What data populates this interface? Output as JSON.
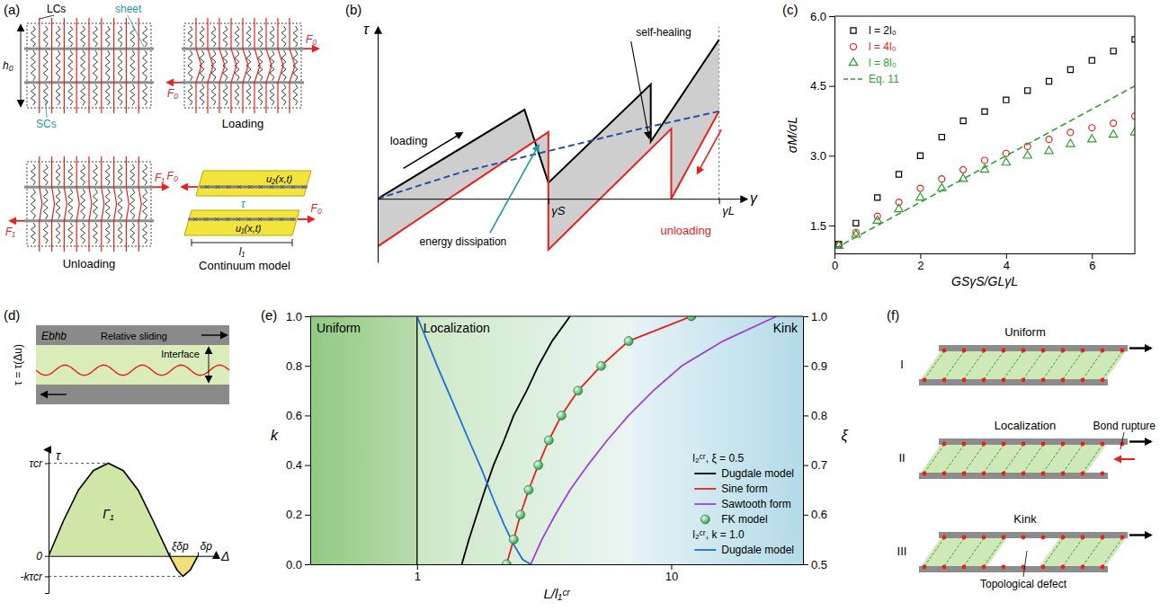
{
  "chart_data": [
    {
      "type": "line",
      "title": "(b)",
      "x_label": "γ",
      "y_label": "τ",
      "xlim": [
        0,
        1.08
      ],
      "ylim": [
        -0.4,
        1.08
      ],
      "xticks": [
        {
          "value": 0.5,
          "label": "γS"
        },
        {
          "value": 1,
          "label": "γL"
        }
      ],
      "yticks": [],
      "tick_labels": "x",
      "series": [
        {
          "color": "#000000",
          "x": [
            0,
            0.43,
            0.5,
            0.8,
            0.8,
            1
          ],
          "values": [
            0,
            0.56,
            0.1,
            0.72,
            0.36,
            1
          ]
        },
        {
          "color": "#e8201e",
          "x": [
            0,
            0.5,
            0.5,
            0.86,
            0.86,
            1
          ],
          "values": [
            -0.3,
            0.42,
            -0.32,
            0.44,
            0,
            0.55
          ]
        },
        {
          "color": "#2b4ea0",
          "line_style": "dashed",
          "x": [
            0,
            0.25,
            0.5,
            0.75,
            1
          ],
          "values": [
            0,
            0.17,
            0.3,
            0.43,
            0.55
          ]
        }
      ],
      "annotations": [
        "loading",
        "unloading",
        "self-healing",
        "energy dissipation"
      ]
    },
    {
      "type": "scatter",
      "title": "(c)",
      "x_label": "GSγS/GLγL",
      "y_label": "σM/σL",
      "xlim": [
        0,
        7
      ],
      "ylim": [
        0.9,
        6.0
      ],
      "xticks": [
        0,
        2,
        4,
        6
      ],
      "yticks": [
        1.5,
        {
          "value": 3,
          "label": "3.0"
        },
        4.5,
        {
          "value": 6,
          "label": "6.0"
        }
      ],
      "legend": "upper left",
      "x": [
        0.1,
        0.5,
        1,
        1.5,
        2,
        2.5,
        3,
        3.5,
        4,
        4.5,
        5,
        5.5,
        6,
        6.5,
        7
      ],
      "series": [
        {
          "name": "l = 2l₀",
          "color": "#000000",
          "marker": "square",
          "values": [
            1.1,
            1.55,
            2.1,
            2.6,
            3.0,
            3.4,
            3.75,
            3.95,
            4.2,
            4.4,
            4.6,
            4.85,
            5.05,
            5.25,
            5.5
          ]
        },
        {
          "name": "l = 4l₀",
          "color": "#e8201e",
          "marker": "circle",
          "values": [
            1.08,
            1.35,
            1.7,
            2.0,
            2.3,
            2.5,
            2.7,
            2.9,
            3.05,
            3.2,
            3.35,
            3.5,
            3.6,
            3.7,
            3.85
          ]
        },
        {
          "name": "l = 8l₀",
          "color": "#2ca02c",
          "marker": "triangle",
          "values": [
            1.06,
            1.3,
            1.6,
            1.85,
            2.1,
            2.3,
            2.5,
            2.7,
            2.85,
            3.0,
            3.1,
            3.25,
            3.35,
            3.45,
            3.5
          ]
        },
        {
          "name": "Eq. 11",
          "type": "line",
          "line_style": "dashed",
          "color": "#2ca02c",
          "x": [
            0,
            7
          ],
          "values": [
            1.0,
            4.5
          ]
        }
      ]
    },
    {
      "type": "line",
      "x_label": "Δ",
      "y_label": "τ",
      "color": "#000000",
      "xlim": [
        0,
        1.12
      ],
      "ylim": [
        -0.4,
        1.15
      ],
      "xticks": [
        {
          "value": 0.81,
          "label": "ξδp"
        },
        {
          "value": 1,
          "label": "δp"
        }
      ],
      "yticks": [
        {
          "value": -0.22,
          "label": "-kτcr"
        },
        0,
        {
          "value": 1,
          "label": "τcr"
        }
      ],
      "x": [
        0,
        0.1,
        0.2,
        0.3,
        0.4,
        0.5,
        0.6,
        0.7,
        0.81,
        0.86,
        0.9,
        0.95,
        1.0
      ],
      "values": [
        0,
        0.38,
        0.71,
        0.92,
        1.0,
        0.92,
        0.71,
        0.38,
        0,
        -0.15,
        -0.22,
        -0.15,
        0
      ],
      "annotations": [
        "Γ₁"
      ]
    },
    {
      "type": "line",
      "title": "(e)",
      "x_label": "L/l₁ᶜʳ",
      "y_label": "k",
      "y2_label": "ξ",
      "log": "x",
      "xlim": [
        0.38,
        33
      ],
      "xticks": [
        1,
        10
      ],
      "ylim": [
        0,
        1
      ],
      "yticks": [
        {
          "value": 0,
          "label": "0.0"
        },
        0.2,
        0.4,
        0.6,
        0.8,
        {
          "value": 1,
          "label": "1.0"
        }
      ],
      "y2lim": [
        0.5,
        1
      ],
      "y2ticks": [
        0.5,
        0.6,
        0.7,
        0.8,
        0.9,
        {
          "value": 1,
          "label": "1.0"
        }
      ],
      "legend": "lower right",
      "legend_titles": [
        "l₂ᶜʳ, ξ = 0.5",
        "l₂ᶜʳ, k = 1.0"
      ],
      "regions": [
        {
          "label": "Uniform",
          "x": [
            0.38,
            1
          ]
        },
        {
          "label": "Localization",
          "x": [
            1,
            7
          ]
        },
        {
          "label": "Kink",
          "x": [
            7,
            33
          ]
        }
      ],
      "series": [
        {
          "name": "Dugdale model",
          "color": "#000000",
          "x": [
            1.5,
            1.6,
            1.72,
            1.85,
            2.0,
            2.2,
            2.4,
            2.7,
            3.0,
            3.4,
            4.0
          ],
          "values": [
            0,
            0.1,
            0.2,
            0.3,
            0.4,
            0.5,
            0.6,
            0.7,
            0.8,
            0.9,
            1.0
          ]
        },
        {
          "name": "Sine form",
          "color": "#e8201e",
          "x": [
            2.25,
            2.4,
            2.55,
            2.75,
            3.0,
            3.3,
            3.7,
            4.3,
            5.3,
            6.8,
            12
          ],
          "values": [
            0,
            0.1,
            0.2,
            0.3,
            0.4,
            0.5,
            0.6,
            0.7,
            0.8,
            0.9,
            1.0
          ]
        },
        {
          "name": "Sawtooth form",
          "color": "#a43fd6",
          "x": [
            2.8,
            3.1,
            3.5,
            4.0,
            4.7,
            5.6,
            6.8,
            8.5,
            11,
            16,
            26
          ],
          "values": [
            0,
            0.1,
            0.2,
            0.3,
            0.4,
            0.5,
            0.6,
            0.7,
            0.8,
            0.9,
            1.0
          ]
        },
        {
          "name": "FK model",
          "type": "scatter",
          "marker": "circle",
          "color": "#2e9e4a",
          "x": [
            2.25,
            2.4,
            2.55,
            2.75,
            3.0,
            3.3,
            3.7,
            4.3,
            5.3,
            6.8,
            12
          ],
          "values": [
            0,
            0.1,
            0.2,
            0.3,
            0.4,
            0.5,
            0.6,
            0.7,
            0.8,
            0.9,
            1.0
          ]
        },
        {
          "name": "Dugdale model",
          "color": "#1f6fd0",
          "axis": "y2",
          "x": [
            1,
            1.2,
            1.4,
            1.6,
            1.8,
            2.0,
            2.2,
            2.4,
            2.6,
            2.8
          ],
          "values": [
            1.0,
            0.9,
            0.82,
            0.75,
            0.69,
            0.63,
            0.58,
            0.54,
            0.51,
            0.5
          ]
        }
      ]
    }
  ],
  "diagrams": {
    "a": {
      "label": "(a)",
      "lcs": "LCs",
      "sheet": "sheet",
      "h0": "h₀",
      "scs": "SCs",
      "loading": {
        "title": "Loading",
        "force": "F₀"
      },
      "unloading": {
        "title": "Unloading",
        "force": "F₁"
      },
      "continuum": {
        "title": "Continuum model",
        "force": "F₀",
        "u2": "u₂(x,t)",
        "u1": "u₁(x,t)",
        "tau": "τ",
        "length": "l₁"
      }
    },
    "d": {
      "label": "(d)",
      "layer": "Ebhb",
      "sliding": "Relative sliding",
      "interface": "Interface",
      "law": "τ = τ(Δu)"
    },
    "f": {
      "label": "(f)",
      "rows": [
        {
          "numeral": "I",
          "title": "Uniform"
        },
        {
          "numeral": "II",
          "title": "Localization",
          "note": "Bond rupture"
        },
        {
          "numeral": "III",
          "title": "Kink",
          "note": "Topological defect"
        }
      ]
    }
  }
}
